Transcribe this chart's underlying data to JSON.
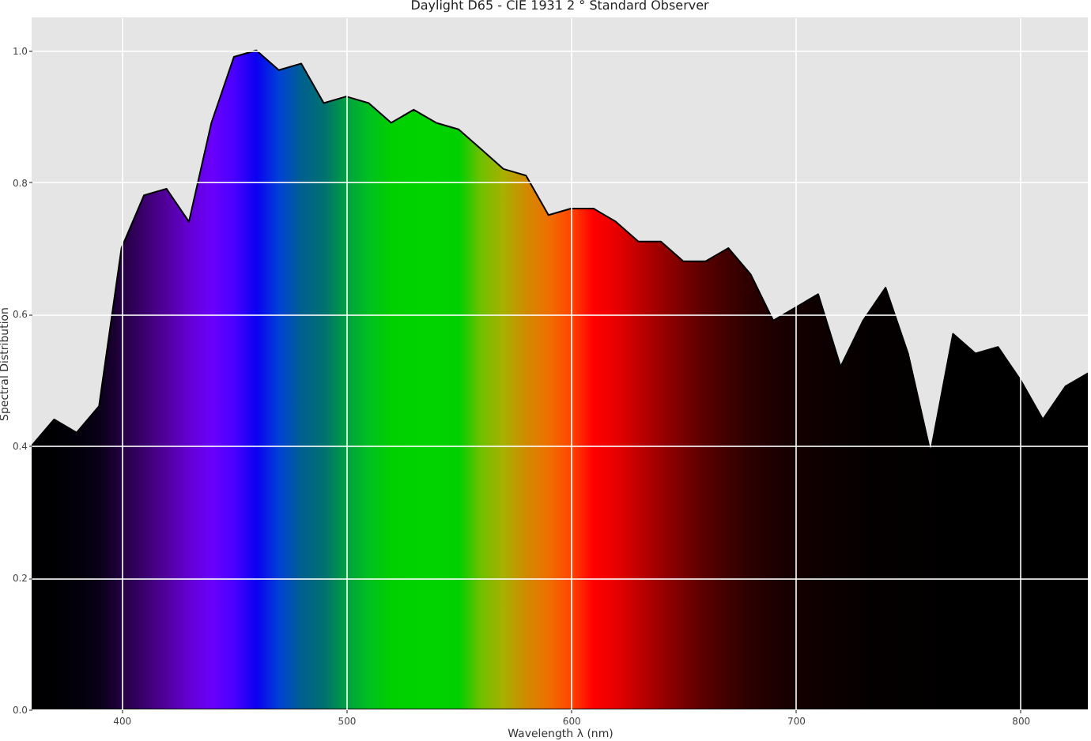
{
  "chart_data": {
    "type": "area",
    "title": "Daylight D65 - CIE 1931 2 ° Standard Observer",
    "xlabel": "Wavelength λ (nm)",
    "ylabel": "Spectral Distribution",
    "x": [
      360,
      370,
      380,
      390,
      400,
      410,
      420,
      430,
      440,
      450,
      460,
      470,
      480,
      490,
      500,
      510,
      520,
      530,
      540,
      550,
      560,
      570,
      580,
      590,
      600,
      610,
      620,
      630,
      640,
      650,
      660,
      670,
      680,
      690,
      700,
      710,
      720,
      730,
      740,
      750,
      760,
      770,
      780,
      790,
      800,
      810,
      820,
      830
    ],
    "series": [
      {
        "values": [
          0.4,
          0.44,
          0.42,
          0.46,
          0.7,
          0.78,
          0.79,
          0.74,
          0.89,
          0.99,
          1.0,
          0.97,
          0.98,
          0.92,
          0.93,
          0.92,
          0.89,
          0.91,
          0.89,
          0.88,
          0.85,
          0.82,
          0.81,
          0.75,
          0.76,
          0.76,
          0.74,
          0.71,
          0.71,
          0.68,
          0.68,
          0.7,
          0.66,
          0.59,
          0.61,
          0.63,
          0.52,
          0.59,
          0.64,
          0.54,
          0.39,
          0.57,
          0.54,
          0.55,
          0.5,
          0.44,
          0.49,
          0.51
        ],
        "colors": [
          "#000000",
          "#000003",
          "#02000a",
          "#0a0018",
          "#22003f",
          "#3a006c",
          "#52009c",
          "#6400d2",
          "#6a00fa",
          "#4a00ff",
          "#0a00f0",
          "#0040d8",
          "#00608f",
          "#007070",
          "#00a040",
          "#00c020",
          "#00cf00",
          "#00d200",
          "#00d300",
          "#00cf00",
          "#70c000",
          "#a8b000",
          "#d08a00",
          "#ee7000",
          "#ff4500",
          "#ff0000",
          "#e80000",
          "#c00000",
          "#9a0000",
          "#780000",
          "#580000",
          "#400000",
          "#2c0000",
          "#1e0000",
          "#140000",
          "#0e0000",
          "#0a0000",
          "#060000",
          "#040000",
          "#030000",
          "#020000",
          "#010000",
          "#010000",
          "#000000",
          "#000000",
          "#000000",
          "#000000",
          "#000000"
        ]
      }
    ],
    "xlim": [
      360,
      830
    ],
    "ylim": [
      0,
      1.05
    ],
    "xticks": [
      400,
      500,
      600,
      700,
      800
    ],
    "yticks": [
      {
        "value": 0,
        "label": "0.0"
      },
      0.2,
      0.4,
      0.6,
      0.8,
      {
        "value": 1,
        "label": "1.0"
      }
    ],
    "grid": true
  }
}
